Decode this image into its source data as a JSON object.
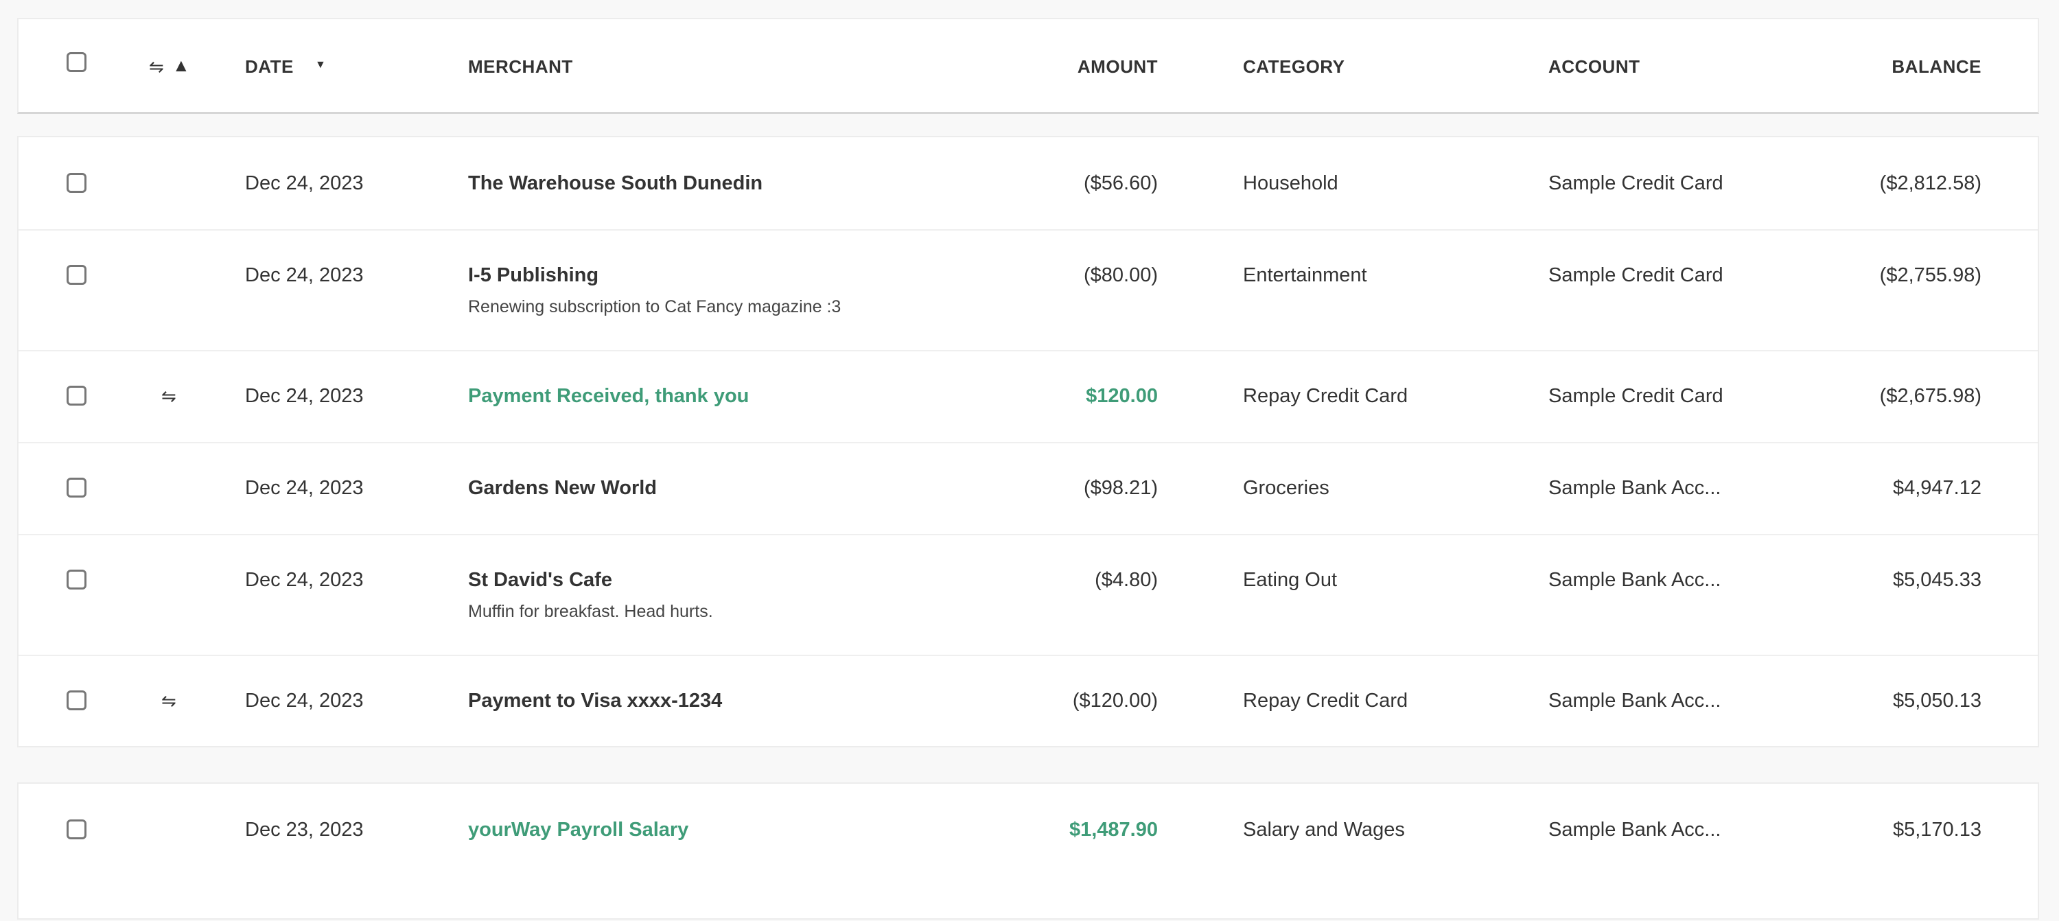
{
  "header": {
    "date": "DATE",
    "merchant": "MERCHANT",
    "amount": "AMOUNT",
    "category": "CATEGORY",
    "account": "ACCOUNT",
    "balance": "BALANCE",
    "icons": [
      "transfer-icon",
      "warning-icon",
      "sort-down-icon"
    ]
  },
  "colors": {
    "positive": "#3f9c78",
    "text": "#333333"
  },
  "transactions": [
    {
      "date": "Dec 24, 2023",
      "merchant": "The Warehouse South Dunedin",
      "note": "",
      "amount": "($56.60)",
      "category": "Household",
      "account": "Sample Credit Card",
      "balance": "($2,812.58)",
      "transfer": false,
      "positive": false
    },
    {
      "date": "Dec 24, 2023",
      "merchant": "I-5 Publishing",
      "note": "Renewing subscription to Cat Fancy magazine :3",
      "amount": "($80.00)",
      "category": "Entertainment",
      "account": "Sample Credit Card",
      "balance": "($2,755.98)",
      "transfer": false,
      "positive": false
    },
    {
      "date": "Dec 24, 2023",
      "merchant": "Payment Received, thank you",
      "note": "",
      "amount": "$120.00",
      "category": "Repay Credit Card",
      "account": "Sample Credit Card",
      "balance": "($2,675.98)",
      "transfer": true,
      "positive": true
    },
    {
      "date": "Dec 24, 2023",
      "merchant": "Gardens New World",
      "note": "",
      "amount": "($98.21)",
      "category": "Groceries",
      "account": "Sample Bank Acc...",
      "balance": "$4,947.12",
      "transfer": false,
      "positive": false
    },
    {
      "date": "Dec 24, 2023",
      "merchant": "St David's Cafe",
      "note": "Muffin for breakfast. Head hurts.",
      "amount": "($4.80)",
      "category": "Eating Out",
      "account": "Sample Bank Acc...",
      "balance": "$5,045.33",
      "transfer": false,
      "positive": false
    },
    {
      "date": "Dec 24, 2023",
      "merchant": "Payment to Visa xxxx-1234",
      "note": "",
      "amount": "($120.00)",
      "category": "Repay Credit Card",
      "account": "Sample Bank Acc...",
      "balance": "$5,050.13",
      "transfer": true,
      "positive": false
    },
    {
      "date": "Dec 23, 2023",
      "merchant": "yourWay Payroll Salary",
      "note": "",
      "amount": "$1,487.90",
      "category": "Salary and Wages",
      "account": "Sample Bank Acc...",
      "balance": "$5,170.13",
      "transfer": false,
      "positive": true
    }
  ]
}
